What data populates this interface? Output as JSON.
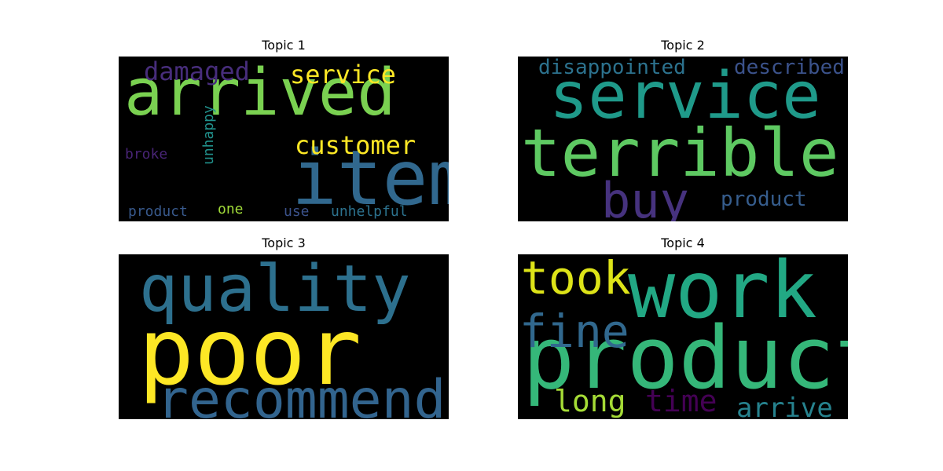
{
  "chart_data": [
    {
      "type": "wordcloud",
      "title": "Topic 1",
      "background": "#000000",
      "words": [
        {
          "text": "item",
          "color": "#31688e"
        },
        {
          "text": "arrived",
          "color": "#7ad151"
        },
        {
          "text": "customer",
          "color": "#fde725"
        },
        {
          "text": "service",
          "color": "#fde725"
        },
        {
          "text": "damaged",
          "color": "#472d7b"
        },
        {
          "text": "unhappy",
          "color": "#21918c"
        },
        {
          "text": "broke",
          "color": "#482475"
        },
        {
          "text": "unhelpful",
          "color": "#2c728e"
        },
        {
          "text": "product",
          "color": "#38598c"
        },
        {
          "text": "one",
          "color": "#a0da39"
        },
        {
          "text": "use",
          "color": "#3b528b"
        }
      ]
    },
    {
      "type": "wordcloud",
      "title": "Topic 2",
      "background": "#000000",
      "words": [
        {
          "text": "terrible",
          "color": "#5ec962"
        },
        {
          "text": "service",
          "color": "#1f9a8a"
        },
        {
          "text": "buy",
          "color": "#46327e"
        },
        {
          "text": "disappointed",
          "color": "#2c728e"
        },
        {
          "text": "described",
          "color": "#3b528b"
        },
        {
          "text": "product",
          "color": "#365d8d"
        }
      ]
    },
    {
      "type": "wordcloud",
      "title": "Topic 3",
      "background": "#000000",
      "words": [
        {
          "text": "poor",
          "color": "#fde725"
        },
        {
          "text": "quality",
          "color": "#2d708e"
        },
        {
          "text": "recommend",
          "color": "#32648e"
        }
      ]
    },
    {
      "type": "wordcloud",
      "title": "Topic 4",
      "background": "#000000",
      "words": [
        {
          "text": "product",
          "color": "#35b779"
        },
        {
          "text": "work",
          "color": "#22a884"
        },
        {
          "text": "took",
          "color": "#dde318"
        },
        {
          "text": "fine",
          "color": "#31688e"
        },
        {
          "text": "long",
          "color": "#a5db36"
        },
        {
          "text": "time",
          "color": "#440154"
        },
        {
          "text": "arrive",
          "color": "#26828e"
        }
      ]
    }
  ]
}
